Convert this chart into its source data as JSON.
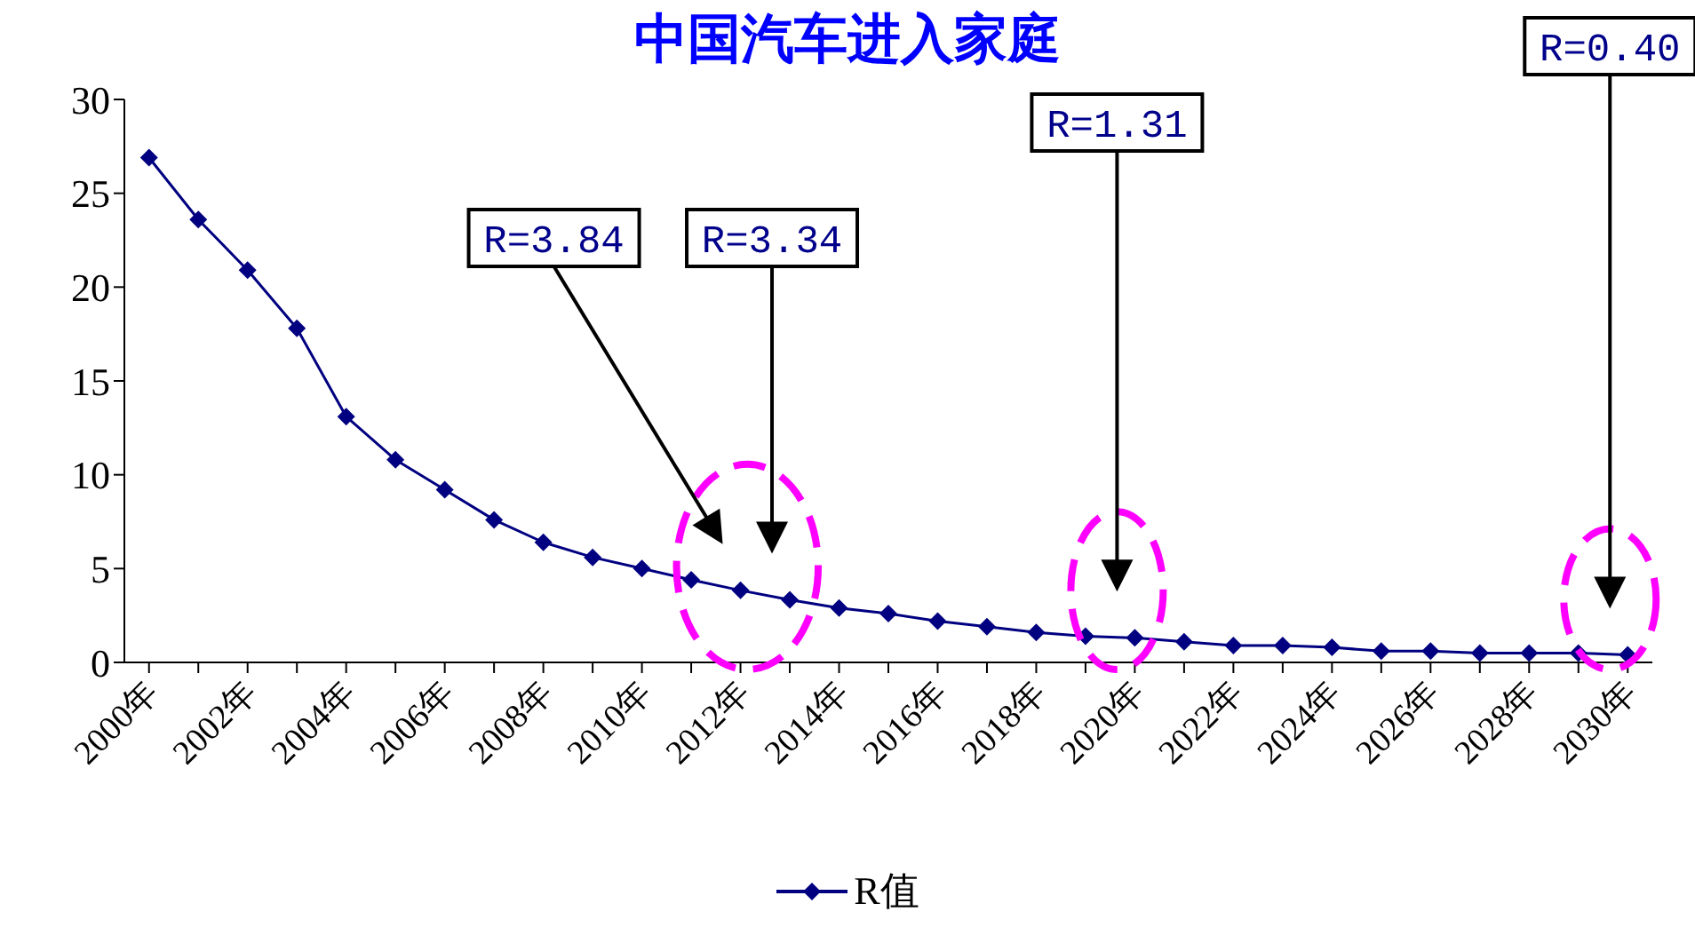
{
  "chart_data": {
    "type": "line",
    "title": "中国汽车进入家庭",
    "categories": [
      "2000年",
      null,
      "2002年",
      null,
      "2004年",
      null,
      "2006年",
      null,
      "2008年",
      null,
      "2010年",
      null,
      "2012年",
      null,
      "2014年",
      null,
      "2016年",
      null,
      "2018年",
      null,
      "2020年",
      null,
      "2022年",
      null,
      "2024年",
      null,
      "2026年",
      null,
      "2028年",
      null,
      "2030年"
    ],
    "series": [
      {
        "name": "R值",
        "color": "#000080",
        "values": [
          26.9,
          23.6,
          20.9,
          17.8,
          13.1,
          10.8,
          9.2,
          7.6,
          6.4,
          5.6,
          5.0,
          4.4,
          3.84,
          3.34,
          2.9,
          2.6,
          2.2,
          1.9,
          1.6,
          1.4,
          1.31,
          1.1,
          0.9,
          0.9,
          0.8,
          0.6,
          0.6,
          0.5,
          0.5,
          0.5,
          0.4
        ]
      }
    ],
    "ylim": [
      0,
      30
    ],
    "yticks": [
      0,
      5,
      10,
      15,
      20,
      25,
      30
    ],
    "marker": "diamond",
    "grid": false,
    "legend": "bottom",
    "annotations": [
      "R=3.84",
      "R=3.34",
      "R=1.31",
      "R=0.40"
    ]
  }
}
